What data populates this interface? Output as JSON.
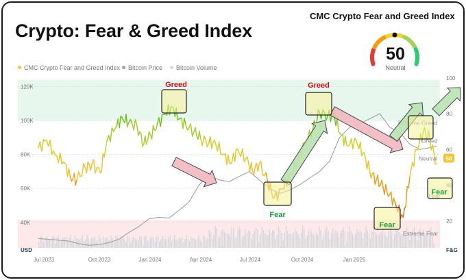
{
  "title": "Crypto: Fear & Greed Index",
  "gauge": {
    "title": "CMC Crypto Fear and Greed Index",
    "value": "50",
    "label": "Neutral",
    "segment_colors": [
      "#e53935",
      "#f39c12",
      "#f4d03f",
      "#a6d15a",
      "#2ecc71"
    ]
  },
  "legend": [
    {
      "label": "CMC Crypto Fear and Greed Index",
      "color": "#f4c430"
    },
    {
      "label": "Bitcoin Price",
      "color": "#9aa0a6"
    },
    {
      "label": "Bitcoin Volume",
      "color": "#d5d8dc"
    }
  ],
  "colors": {
    "greed_zone": "#e8f7ee",
    "fear_zone": "#fde9ea",
    "fear_text": "#1a9e3f",
    "greed_text": "#d10f1f",
    "box_fill": "#f7f39a",
    "green_arrow": "#b9e3b1",
    "red_arrow": "#f1b9c0"
  },
  "annotations": [
    {
      "text": "Greed",
      "color": "greed"
    },
    {
      "text": "Greed",
      "color": "greed"
    },
    {
      "text": "Fear",
      "color": "fear"
    },
    {
      "text": "Fear",
      "color": "fear"
    },
    {
      "text": "Fear",
      "color": "fear"
    }
  ],
  "chart_data": {
    "type": "line",
    "left_axis_title": "USD",
    "right_axis_title": "F&G",
    "x_ticks": [
      "Jul 2023",
      "Oct 2023",
      "Jan 2024",
      "Apr 2024",
      "Jul 2024",
      "Oct 2024",
      "Jan 2025"
    ],
    "y_left_ticks": [
      "120K",
      "100K",
      "80K",
      "60K",
      "40K"
    ],
    "y_left_values": [
      120000,
      100000,
      80000,
      60000,
      40000
    ],
    "y_left_range": [
      25000,
      125000
    ],
    "y_right_ticks": [
      "100",
      "80",
      "60",
      "40",
      "20"
    ],
    "y_right_values": [
      100,
      80,
      60,
      40,
      20
    ],
    "y_right_range": [
      5,
      100
    ],
    "zone_labels": [
      "Extreme Greed",
      "Greed",
      "Neutral",
      "Fear",
      "Extreme Fear"
    ],
    "zone_label_values": [
      75,
      65,
      55,
      34,
      13
    ],
    "current_value_badge": "50",
    "x_range": [
      0,
      24
    ],
    "series": [
      {
        "name": "CMC Crypto Fear and Greed Index",
        "axis": "right",
        "x": [
          0,
          0.5,
          1,
          1.5,
          1.9,
          2.3,
          2.8,
          3.2,
          3.7,
          4.1,
          4.6,
          5.0,
          5.4,
          5.9,
          6.3,
          6.7,
          7.1,
          7.6,
          8.0,
          8.4,
          8.8,
          9.3,
          9.7,
          10.2,
          10.6,
          11.1,
          11.5,
          11.9,
          12.4,
          12.8,
          13.2,
          13.7,
          14.1,
          14.6,
          15.0,
          15.5,
          15.9,
          16.4,
          16.8,
          17.3,
          17.7,
          18.1,
          18.5,
          19.0,
          19.4,
          19.8,
          20.2,
          20.6,
          21.0,
          21.4,
          21.8,
          22.2,
          22.6,
          23.0,
          23.4,
          23.8
        ],
        "values": [
          61,
          65,
          57,
          53,
          45,
          43,
          50,
          52,
          47,
          65,
          72,
          78,
          75,
          73,
          63,
          68,
          74,
          80,
          84,
          77,
          74,
          70,
          66,
          64,
          63,
          57,
          52,
          60,
          55,
          48,
          52,
          42,
          33,
          38,
          45,
          53,
          63,
          71,
          81,
          79,
          78,
          68,
          62,
          65,
          58,
          48,
          43,
          39,
          35,
          28,
          22,
          45,
          60,
          70,
          66,
          52
        ]
      },
      {
        "name": "Bitcoin Price",
        "axis": "left",
        "x": [
          0,
          0.6,
          1.2,
          1.8,
          2.4,
          3.0,
          3.6,
          4.2,
          4.8,
          5.4,
          6.0,
          6.6,
          7.2,
          7.8,
          8.4,
          9.0,
          9.6,
          10.2,
          10.8,
          11.4,
          12.0,
          12.6,
          13.2,
          13.8,
          14.4,
          15.0,
          15.6,
          16.2,
          16.8,
          17.4,
          18.0,
          18.6,
          19.2,
          19.8,
          20.4,
          21.0,
          21.6,
          22.2,
          22.8,
          23.4,
          23.8
        ],
        "values": [
          30500,
          30000,
          29500,
          29000,
          27500,
          26500,
          26800,
          28000,
          30000,
          34000,
          37500,
          42000,
          43000,
          42500,
          47000,
          52000,
          62000,
          68000,
          65000,
          64000,
          67000,
          70000,
          65000,
          60000,
          57000,
          59000,
          62000,
          66000,
          70000,
          76000,
          90000,
          96000,
          98000,
          101000,
          104000,
          96000,
          93000,
          86000,
          83000,
          84000,
          85000
        ]
      }
    ]
  }
}
